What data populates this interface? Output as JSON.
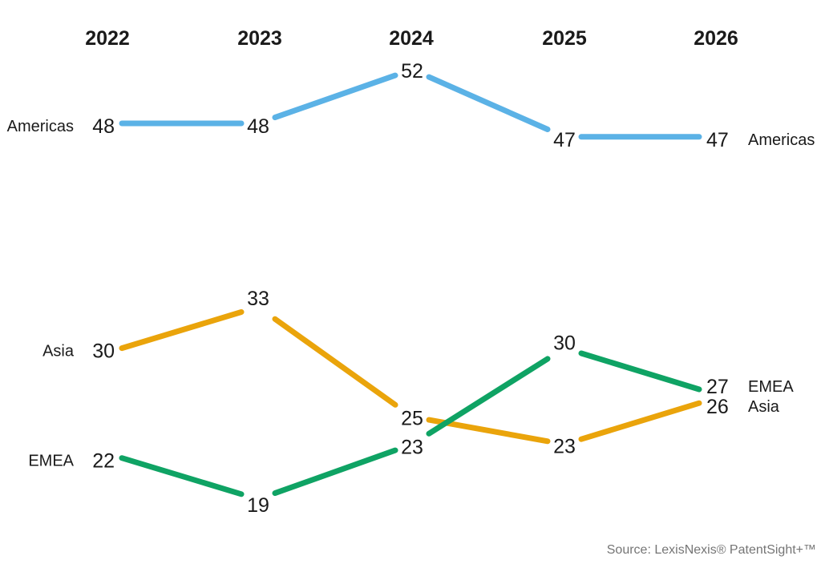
{
  "chart_data": {
    "type": "line",
    "variant": "slope-chart-no-axes",
    "title": "",
    "x": [
      "2022",
      "2023",
      "2024",
      "2025",
      "2026"
    ],
    "series": [
      {
        "name": "Americas",
        "color": "#5BB2E6",
        "values": [
          48,
          48,
          52,
          47,
          47
        ]
      },
      {
        "name": "Asia",
        "color": "#EAA40B",
        "values": [
          30,
          33,
          25,
          23,
          26
        ]
      },
      {
        "name": "EMEA",
        "color": "#0FA364",
        "values": [
          22,
          19,
          23,
          30,
          27
        ]
      }
    ],
    "grid": false,
    "axes": "hidden",
    "data_labels": "every point",
    "series_name_position": "both ends of each line",
    "ylim_hint": [
      19,
      52
    ]
  },
  "source_note": "Source: LexisNexis® PatentSight+™",
  "colors": {
    "background": "#FFFFFF",
    "label_text": "#1A1A1A",
    "source_text": "#757575",
    "americas_line": "#5BB2E6",
    "asia_line": "#EAA40B",
    "emea_line": "#0FA364"
  }
}
